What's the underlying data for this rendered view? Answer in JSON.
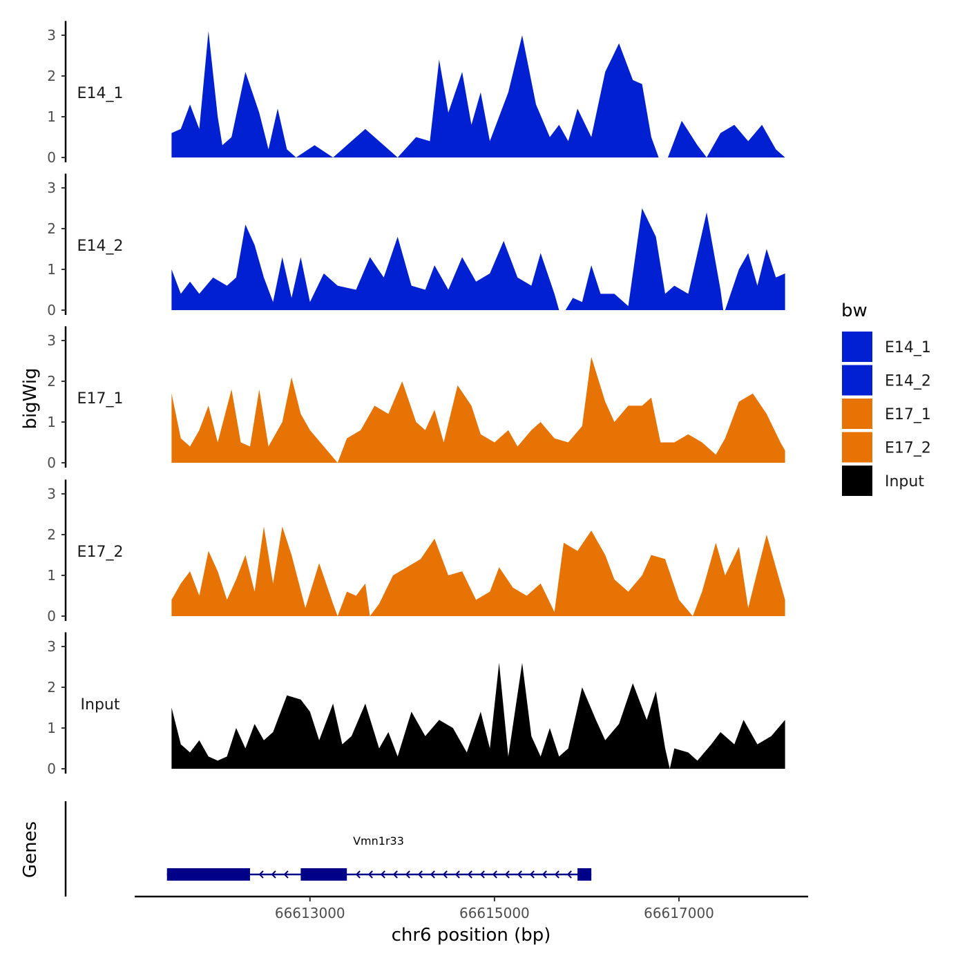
{
  "chart_data": {
    "type": "area",
    "ylabel": "bigWig",
    "xlabel": "chr6 position (bp)",
    "chromosome": "chr6",
    "xlim": [
      66611100,
      66618400
    ],
    "ylim": [
      0,
      3.3
    ],
    "yticks": [
      "0",
      "1",
      "2",
      "3"
    ],
    "xticks": [
      {
        "value": 66613000,
        "label": "66613000"
      },
      {
        "value": 66615000,
        "label": "66615000"
      },
      {
        "value": 66617000,
        "label": "66617000"
      }
    ],
    "legend": {
      "title": "bw",
      "placement": "right",
      "entries": [
        {
          "label": "E14_1",
          "color": "#0020d2"
        },
        {
          "label": "E14_2",
          "color": "#0020d2"
        },
        {
          "label": "E17_1",
          "color": "#e87305"
        },
        {
          "label": "E17_2",
          "color": "#e87305"
        },
        {
          "label": "Input",
          "color": "#000000"
        }
      ]
    },
    "tracks": [
      {
        "name": "E14_1",
        "color": "#0020d2",
        "points": [
          [
            66611500,
            0.6
          ],
          [
            66611600,
            0.7
          ],
          [
            66611700,
            1.3
          ],
          [
            66611800,
            0.7
          ],
          [
            66611900,
            3.1
          ],
          [
            66612000,
            1.0
          ],
          [
            66612050,
            0.3
          ],
          [
            66612150,
            0.5
          ],
          [
            66612300,
            2.1
          ],
          [
            66612450,
            1.1
          ],
          [
            66612550,
            0.2
          ],
          [
            66612650,
            1.2
          ],
          [
            66612750,
            0.2
          ],
          [
            66612850,
            0.0
          ],
          [
            66613050,
            0.3
          ],
          [
            66613250,
            0.0
          ],
          [
            66613400,
            0.3
          ],
          [
            66613600,
            0.7
          ],
          [
            66613800,
            0.3
          ],
          [
            66613950,
            0.0
          ],
          [
            66614150,
            0.5
          ],
          [
            66614300,
            0.4
          ],
          [
            66614400,
            2.4
          ],
          [
            66614500,
            1.1
          ],
          [
            66614650,
            2.1
          ],
          [
            66614750,
            0.8
          ],
          [
            66614850,
            1.6
          ],
          [
            66614950,
            0.4
          ],
          [
            66615150,
            1.6
          ],
          [
            66615300,
            3.0
          ],
          [
            66615450,
            1.3
          ],
          [
            66615600,
            0.5
          ],
          [
            66615700,
            0.8
          ],
          [
            66615800,
            0.4
          ],
          [
            66615900,
            1.2
          ],
          [
            66616050,
            0.5
          ],
          [
            66616200,
            2.1
          ],
          [
            66616350,
            2.8
          ],
          [
            66616500,
            1.9
          ],
          [
            66616600,
            1.8
          ],
          [
            66616700,
            0.5
          ],
          [
            66616780,
            0.0
          ],
          [
            66616880,
            0.0
          ],
          [
            66617030,
            0.9
          ],
          [
            66617200,
            0.3
          ],
          [
            66617300,
            0.0
          ],
          [
            66617450,
            0.6
          ],
          [
            66617600,
            0.8
          ],
          [
            66617750,
            0.4
          ],
          [
            66617900,
            0.8
          ],
          [
            66618050,
            0.2
          ],
          [
            66618150,
            0.0
          ]
        ]
      },
      {
        "name": "E14_2",
        "color": "#0020d2",
        "points": [
          [
            66611500,
            1.0
          ],
          [
            66611600,
            0.4
          ],
          [
            66611700,
            0.7
          ],
          [
            66611800,
            0.4
          ],
          [
            66611950,
            0.8
          ],
          [
            66612100,
            0.6
          ],
          [
            66612200,
            0.8
          ],
          [
            66612300,
            2.1
          ],
          [
            66612400,
            1.6
          ],
          [
            66612500,
            0.8
          ],
          [
            66612600,
            0.2
          ],
          [
            66612700,
            1.3
          ],
          [
            66612800,
            0.3
          ],
          [
            66612900,
            1.3
          ],
          [
            66613000,
            0.2
          ],
          [
            66613150,
            0.9
          ],
          [
            66613300,
            0.6
          ],
          [
            66613500,
            0.5
          ],
          [
            66613650,
            1.3
          ],
          [
            66613800,
            0.8
          ],
          [
            66613950,
            1.8
          ],
          [
            66614100,
            0.6
          ],
          [
            66614250,
            0.5
          ],
          [
            66614350,
            1.1
          ],
          [
            66614500,
            0.5
          ],
          [
            66614650,
            1.3
          ],
          [
            66614800,
            0.7
          ],
          [
            66614950,
            0.9
          ],
          [
            66615100,
            1.7
          ],
          [
            66615250,
            0.8
          ],
          [
            66615400,
            0.6
          ],
          [
            66615500,
            1.4
          ],
          [
            66615650,
            0.4
          ],
          [
            66615700,
            0.0
          ],
          [
            66615770,
            0.0
          ],
          [
            66615850,
            0.3
          ],
          [
            66615950,
            0.2
          ],
          [
            66616050,
            1.1
          ],
          [
            66616150,
            0.4
          ],
          [
            66616300,
            0.4
          ],
          [
            66616450,
            0.1
          ],
          [
            66616600,
            2.5
          ],
          [
            66616750,
            1.8
          ],
          [
            66616850,
            0.4
          ],
          [
            66616950,
            0.6
          ],
          [
            66617100,
            0.4
          ],
          [
            66617300,
            2.4
          ],
          [
            66617450,
            0.5
          ],
          [
            66617480,
            0.0
          ],
          [
            66617500,
            0.0
          ],
          [
            66617650,
            1.0
          ],
          [
            66617750,
            1.4
          ],
          [
            66617850,
            0.6
          ],
          [
            66617950,
            1.5
          ],
          [
            66618050,
            0.8
          ],
          [
            66618150,
            0.9
          ]
        ]
      },
      {
        "name": "E17_1",
        "color": "#e87305",
        "points": [
          [
            66611500,
            1.7
          ],
          [
            66611600,
            0.6
          ],
          [
            66611700,
            0.4
          ],
          [
            66611800,
            0.8
          ],
          [
            66611900,
            1.4
          ],
          [
            66612000,
            0.5
          ],
          [
            66612150,
            1.8
          ],
          [
            66612250,
            0.5
          ],
          [
            66612350,
            0.4
          ],
          [
            66612450,
            1.8
          ],
          [
            66612550,
            0.4
          ],
          [
            66612700,
            1.0
          ],
          [
            66612800,
            2.1
          ],
          [
            66612900,
            1.2
          ],
          [
            66613000,
            0.8
          ],
          [
            66613150,
            0.4
          ],
          [
            66613300,
            0.0
          ],
          [
            66613400,
            0.6
          ],
          [
            66613550,
            0.8
          ],
          [
            66613700,
            1.4
          ],
          [
            66613850,
            1.2
          ],
          [
            66614000,
            2.0
          ],
          [
            66614150,
            1.0
          ],
          [
            66614250,
            0.8
          ],
          [
            66614350,
            1.3
          ],
          [
            66614450,
            0.5
          ],
          [
            66614600,
            1.9
          ],
          [
            66614750,
            1.4
          ],
          [
            66614850,
            0.7
          ],
          [
            66615000,
            0.5
          ],
          [
            66615150,
            0.8
          ],
          [
            66615250,
            0.4
          ],
          [
            66615400,
            0.8
          ],
          [
            66615500,
            1.0
          ],
          [
            66615650,
            0.6
          ],
          [
            66615800,
            0.5
          ],
          [
            66615950,
            0.9
          ],
          [
            66616050,
            2.6
          ],
          [
            66616200,
            1.5
          ],
          [
            66616300,
            1.0
          ],
          [
            66616450,
            1.4
          ],
          [
            66616600,
            1.4
          ],
          [
            66616700,
            1.6
          ],
          [
            66616800,
            0.5
          ],
          [
            66616950,
            0.5
          ],
          [
            66617100,
            0.7
          ],
          [
            66617250,
            0.5
          ],
          [
            66617400,
            0.2
          ],
          [
            66617500,
            0.6
          ],
          [
            66617650,
            1.5
          ],
          [
            66617800,
            1.7
          ],
          [
            66617950,
            1.2
          ],
          [
            66618100,
            0.5
          ],
          [
            66618150,
            0.3
          ]
        ]
      },
      {
        "name": "E17_2",
        "color": "#e87305",
        "points": [
          [
            66611500,
            0.4
          ],
          [
            66611600,
            0.8
          ],
          [
            66611700,
            1.1
          ],
          [
            66611800,
            0.5
          ],
          [
            66611900,
            1.6
          ],
          [
            66612000,
            1.1
          ],
          [
            66612100,
            0.4
          ],
          [
            66612200,
            0.9
          ],
          [
            66612300,
            1.5
          ],
          [
            66612400,
            0.6
          ],
          [
            66612500,
            2.2
          ],
          [
            66612600,
            0.8
          ],
          [
            66612700,
            2.2
          ],
          [
            66612800,
            1.5
          ],
          [
            66612950,
            0.2
          ],
          [
            66613100,
            1.3
          ],
          [
            66613250,
            0.3
          ],
          [
            66613300,
            0.0
          ],
          [
            66613400,
            0.6
          ],
          [
            66613500,
            0.5
          ],
          [
            66613600,
            0.8
          ],
          [
            66613650,
            0.0
          ],
          [
            66613750,
            0.3
          ],
          [
            66613900,
            1.0
          ],
          [
            66614050,
            1.2
          ],
          [
            66614200,
            1.4
          ],
          [
            66614350,
            1.9
          ],
          [
            66614500,
            1.0
          ],
          [
            66614650,
            1.1
          ],
          [
            66614800,
            0.4
          ],
          [
            66614950,
            0.6
          ],
          [
            66615050,
            1.2
          ],
          [
            66615200,
            0.7
          ],
          [
            66615350,
            0.5
          ],
          [
            66615500,
            0.8
          ],
          [
            66615650,
            0.1
          ],
          [
            66615750,
            1.8
          ],
          [
            66615900,
            1.6
          ],
          [
            66616050,
            2.1
          ],
          [
            66616200,
            1.5
          ],
          [
            66616300,
            0.9
          ],
          [
            66616450,
            0.6
          ],
          [
            66616600,
            1.0
          ],
          [
            66616700,
            1.5
          ],
          [
            66616850,
            1.4
          ],
          [
            66617000,
            0.4
          ],
          [
            66617150,
            0.0
          ],
          [
            66617250,
            0.6
          ],
          [
            66617400,
            1.8
          ],
          [
            66617500,
            1.0
          ],
          [
            66617650,
            1.7
          ],
          [
            66617750,
            0.2
          ],
          [
            66617850,
            1.1
          ],
          [
            66617950,
            2.0
          ],
          [
            66618050,
            1.2
          ],
          [
            66618150,
            0.4
          ]
        ]
      },
      {
        "name": "Input",
        "color": "#000000",
        "points": [
          [
            66611500,
            1.5
          ],
          [
            66611600,
            0.6
          ],
          [
            66611700,
            0.4
          ],
          [
            66611800,
            0.7
          ],
          [
            66611900,
            0.3
          ],
          [
            66612000,
            0.2
          ],
          [
            66612100,
            0.3
          ],
          [
            66612200,
            1.0
          ],
          [
            66612300,
            0.5
          ],
          [
            66612400,
            1.1
          ],
          [
            66612500,
            0.7
          ],
          [
            66612600,
            0.9
          ],
          [
            66612750,
            1.8
          ],
          [
            66612900,
            1.7
          ],
          [
            66613000,
            1.4
          ],
          [
            66613100,
            0.7
          ],
          [
            66613250,
            1.6
          ],
          [
            66613350,
            0.6
          ],
          [
            66613450,
            0.8
          ],
          [
            66613600,
            1.6
          ],
          [
            66613750,
            0.5
          ],
          [
            66613850,
            0.9
          ],
          [
            66613950,
            0.3
          ],
          [
            66614100,
            1.4
          ],
          [
            66614250,
            0.8
          ],
          [
            66614400,
            1.2
          ],
          [
            66614550,
            1.0
          ],
          [
            66614700,
            0.4
          ],
          [
            66614850,
            1.4
          ],
          [
            66614950,
            0.5
          ],
          [
            66615050,
            2.6
          ],
          [
            66615150,
            0.3
          ],
          [
            66615300,
            2.6
          ],
          [
            66615400,
            0.8
          ],
          [
            66615500,
            0.3
          ],
          [
            66615600,
            1.0
          ],
          [
            66615700,
            0.3
          ],
          [
            66615800,
            0.5
          ],
          [
            66615950,
            2.0
          ],
          [
            66616100,
            1.2
          ],
          [
            66616200,
            0.7
          ],
          [
            66616350,
            1.1
          ],
          [
            66616500,
            2.1
          ],
          [
            66616650,
            1.2
          ],
          [
            66616750,
            1.9
          ],
          [
            66616850,
            0.5
          ],
          [
            66616900,
            0.0
          ],
          [
            66616950,
            0.5
          ],
          [
            66617100,
            0.4
          ],
          [
            66617200,
            0.2
          ],
          [
            66617350,
            0.6
          ],
          [
            66617450,
            0.9
          ],
          [
            66617600,
            0.6
          ],
          [
            66617700,
            1.2
          ],
          [
            66617850,
            0.6
          ],
          [
            66618000,
            0.8
          ],
          [
            66618150,
            1.2
          ]
        ]
      }
    ],
    "gene_track": {
      "label": "Genes",
      "gene_name": "Vmn1r33",
      "color": "#000088",
      "strand": "-",
      "start": 66611450,
      "end": 66616050,
      "exons": [
        [
          66611450,
          66612350
        ],
        [
          66612900,
          66613400
        ],
        [
          66615900,
          66616050
        ]
      ]
    }
  }
}
